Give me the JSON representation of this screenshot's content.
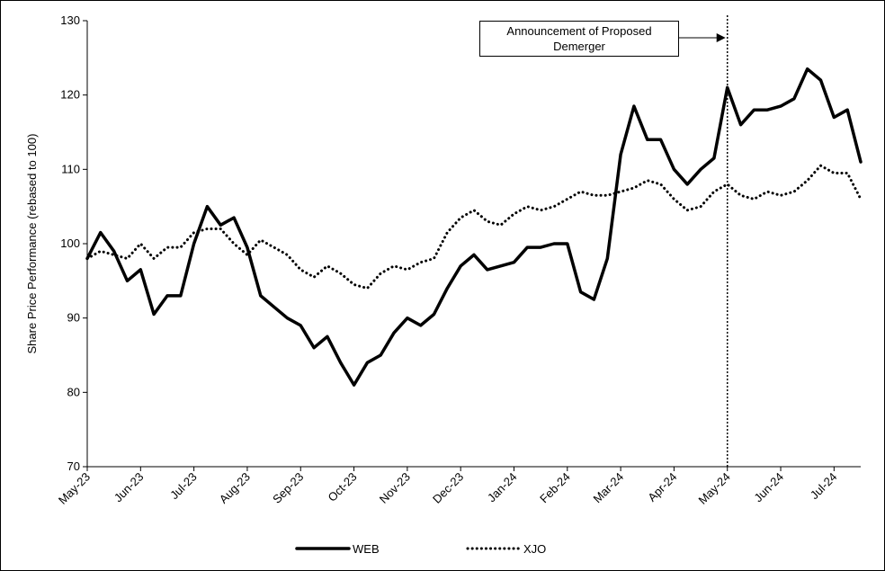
{
  "chart_data": {
    "type": "line",
    "ylabel": "Share Price Performance (rebased to 100)",
    "ylim": [
      70,
      130
    ],
    "yticks": [
      70,
      80,
      90,
      100,
      110,
      120,
      130
    ],
    "xlim": [
      0,
      14.5
    ],
    "xticks": [
      {
        "value": 0,
        "label": "May-23"
      },
      {
        "value": 1,
        "label": "Jun-23"
      },
      {
        "value": 2,
        "label": "Jul-23"
      },
      {
        "value": 3,
        "label": "Aug-23"
      },
      {
        "value": 4,
        "label": "Sep-23"
      },
      {
        "value": 5,
        "label": "Oct-23"
      },
      {
        "value": 6,
        "label": "Nov-23"
      },
      {
        "value": 7,
        "label": "Dec-23"
      },
      {
        "value": 8,
        "label": "Jan-24"
      },
      {
        "value": 9,
        "label": "Feb-24"
      },
      {
        "value": 10,
        "label": "Mar-24"
      },
      {
        "value": 11,
        "label": "Apr-24"
      },
      {
        "value": 12,
        "label": "May-24"
      },
      {
        "value": 13,
        "label": "Jun-24"
      },
      {
        "value": 14,
        "label": "Jul-24"
      }
    ],
    "x": [
      0,
      0.25,
      0.5,
      0.75,
      1,
      1.25,
      1.5,
      1.75,
      2,
      2.25,
      2.5,
      2.75,
      3,
      3.25,
      3.5,
      3.75,
      4,
      4.25,
      4.5,
      4.75,
      5,
      5.25,
      5.5,
      5.75,
      6,
      6.25,
      6.5,
      6.75,
      7,
      7.25,
      7.5,
      7.75,
      8,
      8.25,
      8.5,
      8.75,
      9,
      9.25,
      9.5,
      9.75,
      10,
      10.25,
      10.5,
      10.75,
      11,
      11.25,
      11.5,
      11.75,
      12,
      12.25,
      12.5,
      12.75,
      13,
      13.25,
      13.5,
      13.75,
      14,
      14.25,
      14.5
    ],
    "series": [
      {
        "name": "WEB",
        "color": "#000000",
        "style": "solid",
        "values": [
          98,
          101.5,
          99,
          95,
          96.5,
          90.5,
          93,
          93,
          100,
          105,
          102.5,
          103.5,
          99.5,
          93,
          91.5,
          90,
          89,
          86,
          87.5,
          84,
          81,
          84,
          85,
          88,
          90,
          89,
          90.5,
          94,
          97,
          98.5,
          96.5,
          97,
          97.5,
          99.5,
          99.5,
          100,
          100,
          93.5,
          92.5,
          98,
          112,
          118.5,
          114,
          114,
          110,
          108,
          110,
          111.5,
          121,
          116,
          118,
          118,
          118.5,
          119.5,
          123.5,
          122,
          117,
          118,
          111
        ]
      },
      {
        "name": "XJO",
        "color": "#000000",
        "style": "dotted",
        "values": [
          98,
          99,
          98.5,
          98,
          100,
          98,
          99.5,
          99.5,
          101.5,
          102,
          102,
          100,
          98.5,
          100.5,
          99.5,
          98.5,
          96.5,
          95.5,
          97,
          96,
          94.5,
          94,
          96,
          97,
          96.5,
          97.5,
          98,
          101.5,
          103.5,
          104.5,
          103,
          102.5,
          104,
          105,
          104.5,
          105,
          106,
          107,
          106.5,
          106.5,
          107,
          107.5,
          108.5,
          108,
          106,
          104.5,
          105,
          107,
          108,
          106.5,
          106,
          107,
          106.5,
          107,
          108.5,
          110.5,
          109.5,
          109.5,
          106
        ]
      }
    ],
    "event": {
      "x": 12,
      "label": "Announcement of Proposed Demerger"
    },
    "legend": "bottom"
  }
}
